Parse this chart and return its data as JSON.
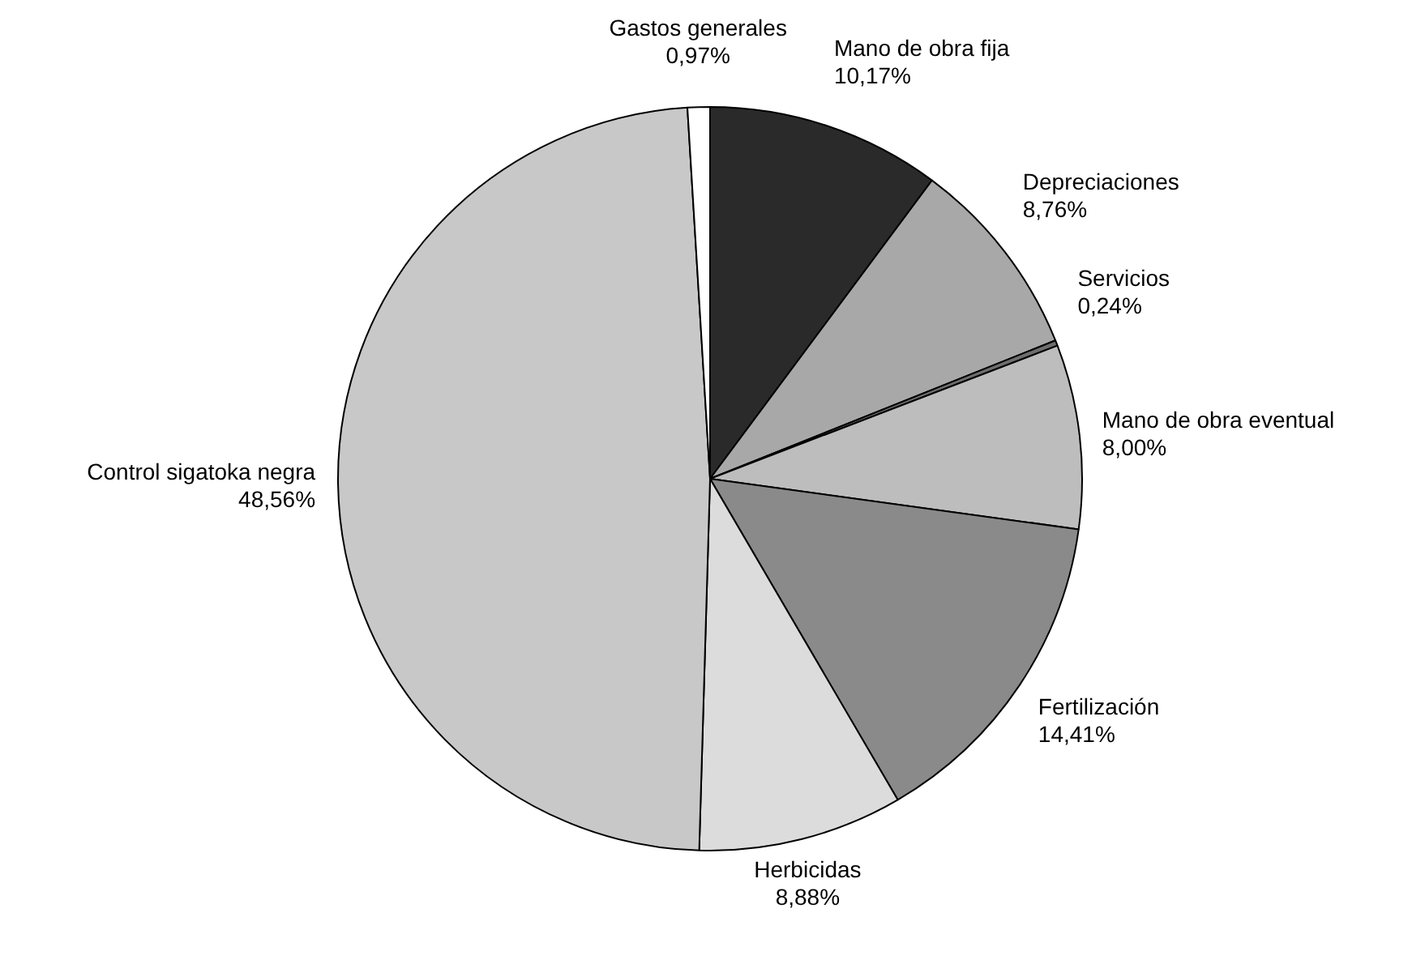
{
  "chart_data": {
    "type": "pie",
    "categories": [
      "Mano de obra fija",
      "Depreciaciones",
      "Servicios",
      "Mano de obra eventual",
      "Fertilización",
      "Herbicidas",
      "Control sigatoka negra",
      "Gastos generales"
    ],
    "values": [
      10.17,
      8.76,
      0.24,
      8.0,
      14.41,
      8.88,
      48.56,
      0.97
    ],
    "value_labels": [
      "10,17%",
      "8,76%",
      "0,24%",
      "8,00%",
      "14,41%",
      "8,88%",
      "48,56%",
      "0,97%"
    ],
    "colors": [
      "#2a2a2a",
      "#a8a8a8",
      "#6e6e6e",
      "#bdbdbd",
      "#8a8a8a",
      "#dcdcdc",
      "#c8c8c8",
      "#ffffff"
    ],
    "legend": false
  }
}
